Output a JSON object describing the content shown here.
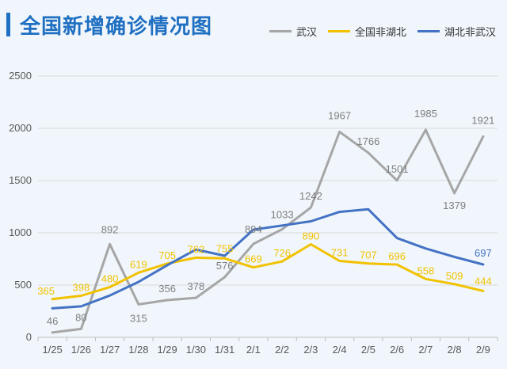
{
  "chart_data": {
    "type": "line",
    "title": "全国新增确诊情况图",
    "xlabel": "",
    "ylabel": "",
    "ylim": [
      0,
      2500
    ],
    "yticks": [
      0,
      500,
      1000,
      1500,
      2000,
      2500
    ],
    "grid": true,
    "legend_position": "top-right",
    "categories": [
      "1/25",
      "1/26",
      "1/27",
      "1/28",
      "1/29",
      "1/30",
      "1/31",
      "2/1",
      "2/2",
      "2/3",
      "2/4",
      "2/5",
      "2/6",
      "2/7",
      "2/8",
      "2/9"
    ],
    "series": [
      {
        "name": "武汉",
        "color": "#a6a6a6",
        "values": [
          46,
          80,
          892,
          315,
          356,
          378,
          576,
          894,
          1033,
          1242,
          1967,
          1766,
          1501,
          1985,
          1379,
          1921
        ],
        "labels": [
          "46",
          "80",
          "892",
          "315",
          "356",
          "378",
          "576",
          "894",
          "1033",
          "1242",
          "1967",
          "1766",
          "1501",
          "1985",
          "1379",
          "1921"
        ],
        "label_color": "#7f7f7f"
      },
      {
        "name": "全国非湖北",
        "color": "#f2c200",
        "values": [
          365,
          398,
          480,
          619,
          705,
          762,
          755,
          669,
          726,
          890,
          731,
          707,
          696,
          558,
          509,
          444
        ],
        "labels": [
          "365",
          "398",
          "480",
          "619",
          "705",
          "762",
          "755",
          "669",
          "726",
          "890",
          "731",
          "707",
          "696",
          "558",
          "509",
          "444"
        ],
        "label_color": "#f2c200"
      },
      {
        "name": "湖北非武汉",
        "color": "#4472c4",
        "values": [
          277,
          296,
          400,
          530,
          690,
          840,
          780,
          1030,
          1070,
          1110,
          1200,
          1225,
          950,
          850,
          770,
          697
        ],
        "labels": [
          "",
          "",
          "",
          "",
          "",
          "",
          "",
          "",
          "",
          "",
          "",
          "",
          "",
          "",
          "",
          "697"
        ],
        "label_color": "#4472c4"
      }
    ]
  }
}
